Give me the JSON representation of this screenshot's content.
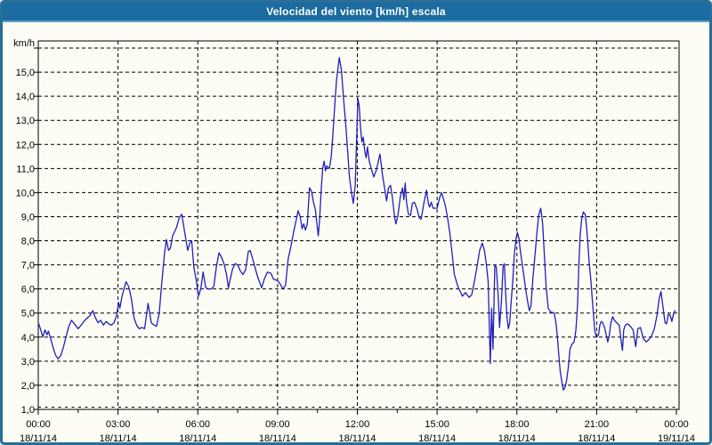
{
  "window": {
    "title": "Velocidad del viento [km/h] escala"
  },
  "colors": {
    "titlebar_bg": "#1b6ba0",
    "titlebar_edge": "#5d9fc4",
    "frame_border": "#2a6d97",
    "background": "#fdfdf5",
    "grid": "#000000",
    "text": "#000000",
    "line": "#1f1fbe"
  },
  "chart_data": {
    "type": "line",
    "title": "Velocidad del viento [km/h] escala",
    "y_unit_label": "km/h",
    "ylabel": "",
    "xlabel": "",
    "ylim": [
      1,
      16
    ],
    "y_tick_step": 1,
    "grid": "dashed",
    "legend_position": "none",
    "y_tick_labels": [
      "1,0",
      "2,0",
      "3,0",
      "4,0",
      "5,0",
      "6,0",
      "7,0",
      "8,0",
      "9,0",
      "10,0",
      "11,0",
      "12,0",
      "13,0",
      "14,0",
      "15,0"
    ],
    "x_range_hours": [
      0,
      24
    ],
    "x_ticks": [
      {
        "hour": 0,
        "time": "00:00",
        "date": "18/11/14"
      },
      {
        "hour": 3,
        "time": "03:00",
        "date": "18/11/14"
      },
      {
        "hour": 6,
        "time": "06:00",
        "date": "18/11/14"
      },
      {
        "hour": 9,
        "time": "09:00",
        "date": "18/11/14"
      },
      {
        "hour": 12,
        "time": "12:00",
        "date": "18/11/14"
      },
      {
        "hour": 15,
        "time": "15:00",
        "date": "18/11/14"
      },
      {
        "hour": 18,
        "time": "18:00",
        "date": "18/11/14"
      },
      {
        "hour": 21,
        "time": "21:00",
        "date": "18/11/14"
      },
      {
        "hour": 24,
        "time": "00:00",
        "date": "19/11/14"
      }
    ],
    "series": [
      {
        "name": "Velocidad del viento [km/h]",
        "color": "#1f1fbe",
        "points": [
          [
            0.0,
            4.6
          ],
          [
            0.08,
            4.35
          ],
          [
            0.17,
            4.0
          ],
          [
            0.25,
            4.3
          ],
          [
            0.33,
            4.1
          ],
          [
            0.38,
            4.25
          ],
          [
            0.45,
            4.0
          ],
          [
            0.55,
            3.6
          ],
          [
            0.65,
            3.25
          ],
          [
            0.75,
            3.1
          ],
          [
            0.85,
            3.25
          ],
          [
            0.95,
            3.6
          ],
          [
            1.05,
            4.05
          ],
          [
            1.15,
            4.45
          ],
          [
            1.25,
            4.7
          ],
          [
            1.4,
            4.5
          ],
          [
            1.5,
            4.35
          ],
          [
            1.65,
            4.55
          ],
          [
            1.75,
            4.7
          ],
          [
            1.85,
            4.8
          ],
          [
            1.95,
            4.9
          ],
          [
            2.05,
            5.1
          ],
          [
            2.15,
            4.8
          ],
          [
            2.25,
            4.6
          ],
          [
            2.35,
            4.7
          ],
          [
            2.45,
            4.5
          ],
          [
            2.55,
            4.65
          ],
          [
            2.65,
            4.55
          ],
          [
            2.75,
            4.5
          ],
          [
            2.85,
            4.6
          ],
          [
            2.95,
            4.9
          ],
          [
            3.02,
            5.45
          ],
          [
            3.07,
            5.2
          ],
          [
            3.15,
            5.7
          ],
          [
            3.3,
            6.3
          ],
          [
            3.4,
            6.1
          ],
          [
            3.5,
            5.6
          ],
          [
            3.6,
            4.8
          ],
          [
            3.7,
            4.5
          ],
          [
            3.8,
            4.35
          ],
          [
            3.9,
            4.4
          ],
          [
            4.0,
            4.35
          ],
          [
            4.13,
            5.4
          ],
          [
            4.25,
            4.6
          ],
          [
            4.35,
            4.5
          ],
          [
            4.45,
            4.45
          ],
          [
            4.55,
            5.0
          ],
          [
            4.65,
            6.3
          ],
          [
            4.75,
            7.5
          ],
          [
            4.82,
            8.05
          ],
          [
            4.9,
            7.6
          ],
          [
            4.97,
            7.7
          ],
          [
            5.05,
            8.2
          ],
          [
            5.2,
            8.55
          ],
          [
            5.3,
            8.95
          ],
          [
            5.4,
            9.1
          ],
          [
            5.5,
            8.4
          ],
          [
            5.62,
            7.6
          ],
          [
            5.7,
            7.9
          ],
          [
            5.77,
            8.0
          ],
          [
            5.85,
            6.9
          ],
          [
            5.95,
            6.3
          ],
          [
            6.03,
            5.7
          ],
          [
            6.12,
            6.05
          ],
          [
            6.2,
            6.7
          ],
          [
            6.3,
            6.05
          ],
          [
            6.4,
            6.0
          ],
          [
            6.5,
            6.0
          ],
          [
            6.6,
            6.1
          ],
          [
            6.7,
            6.95
          ],
          [
            6.8,
            7.5
          ],
          [
            6.9,
            7.3
          ],
          [
            7.0,
            7.0
          ],
          [
            7.08,
            6.6
          ],
          [
            7.15,
            6.05
          ],
          [
            7.22,
            6.4
          ],
          [
            7.3,
            6.8
          ],
          [
            7.4,
            7.05
          ],
          [
            7.5,
            7.0
          ],
          [
            7.6,
            6.75
          ],
          [
            7.7,
            6.6
          ],
          [
            7.8,
            6.8
          ],
          [
            7.9,
            7.55
          ],
          [
            7.97,
            7.6
          ],
          [
            8.05,
            7.3
          ],
          [
            8.15,
            6.9
          ],
          [
            8.25,
            6.5
          ],
          [
            8.4,
            6.05
          ],
          [
            8.5,
            6.4
          ],
          [
            8.62,
            6.7
          ],
          [
            8.75,
            6.65
          ],
          [
            8.85,
            6.4
          ],
          [
            9.0,
            6.35
          ],
          [
            9.1,
            6.2
          ],
          [
            9.2,
            6.0
          ],
          [
            9.3,
            6.15
          ],
          [
            9.4,
            7.25
          ],
          [
            9.5,
            7.75
          ],
          [
            9.6,
            8.35
          ],
          [
            9.7,
            8.85
          ],
          [
            9.77,
            9.25
          ],
          [
            9.85,
            9.0
          ],
          [
            9.92,
            8.5
          ],
          [
            9.98,
            8.7
          ],
          [
            10.05,
            8.45
          ],
          [
            10.12,
            8.7
          ],
          [
            10.2,
            10.2
          ],
          [
            10.28,
            10.05
          ],
          [
            10.35,
            9.6
          ],
          [
            10.42,
            9.3
          ],
          [
            10.48,
            8.7
          ],
          [
            10.53,
            8.2
          ],
          [
            10.58,
            8.85
          ],
          [
            10.65,
            10.3
          ],
          [
            10.7,
            11.05
          ],
          [
            10.75,
            11.3
          ],
          [
            10.8,
            10.9
          ],
          [
            10.85,
            11.1
          ],
          [
            10.95,
            11.0
          ],
          [
            11.02,
            11.5
          ],
          [
            11.08,
            12.4
          ],
          [
            11.15,
            13.6
          ],
          [
            11.22,
            14.7
          ],
          [
            11.32,
            15.6
          ],
          [
            11.4,
            15.1
          ],
          [
            11.48,
            13.9
          ],
          [
            11.55,
            13.0
          ],
          [
            11.62,
            12.0
          ],
          [
            11.7,
            10.7
          ],
          [
            11.78,
            10.0
          ],
          [
            11.85,
            9.55
          ],
          [
            11.92,
            10.3
          ],
          [
            11.97,
            12.1
          ],
          [
            12.02,
            13.9
          ],
          [
            12.07,
            13.6
          ],
          [
            12.12,
            12.7
          ],
          [
            12.17,
            12.1
          ],
          [
            12.22,
            12.3
          ],
          [
            12.28,
            11.7
          ],
          [
            12.33,
            11.45
          ],
          [
            12.38,
            11.9
          ],
          [
            12.45,
            11.3
          ],
          [
            12.55,
            10.9
          ],
          [
            12.62,
            10.65
          ],
          [
            12.72,
            10.95
          ],
          [
            12.85,
            11.6
          ],
          [
            12.95,
            10.7
          ],
          [
            13.05,
            10.0
          ],
          [
            13.1,
            9.65
          ],
          [
            13.17,
            10.2
          ],
          [
            13.25,
            10.3
          ],
          [
            13.32,
            9.8
          ],
          [
            13.4,
            9.0
          ],
          [
            13.45,
            8.7
          ],
          [
            13.52,
            9.0
          ],
          [
            13.62,
            9.85
          ],
          [
            13.7,
            10.2
          ],
          [
            13.75,
            9.7
          ],
          [
            13.8,
            10.4
          ],
          [
            13.85,
            9.6
          ],
          [
            13.92,
            9.1
          ],
          [
            14.0,
            9.05
          ],
          [
            14.07,
            9.55
          ],
          [
            14.15,
            9.6
          ],
          [
            14.25,
            9.3
          ],
          [
            14.33,
            8.95
          ],
          [
            14.4,
            8.9
          ],
          [
            14.5,
            9.55
          ],
          [
            14.6,
            10.1
          ],
          [
            14.67,
            9.55
          ],
          [
            14.72,
            9.4
          ],
          [
            14.78,
            9.6
          ],
          [
            14.85,
            9.35
          ],
          [
            15.0,
            9.35
          ],
          [
            15.1,
            9.8
          ],
          [
            15.17,
            10.0
          ],
          [
            15.25,
            9.7
          ],
          [
            15.32,
            9.4
          ],
          [
            15.4,
            8.9
          ],
          [
            15.48,
            8.3
          ],
          [
            15.57,
            7.4
          ],
          [
            15.65,
            6.6
          ],
          [
            15.73,
            6.3
          ],
          [
            15.8,
            6.05
          ],
          [
            15.87,
            5.9
          ],
          [
            15.95,
            5.7
          ],
          [
            16.07,
            5.85
          ],
          [
            16.2,
            5.65
          ],
          [
            16.3,
            5.75
          ],
          [
            16.4,
            6.3
          ],
          [
            16.5,
            6.9
          ],
          [
            16.6,
            7.6
          ],
          [
            16.7,
            7.9
          ],
          [
            16.78,
            7.6
          ],
          [
            16.85,
            7.05
          ],
          [
            16.92,
            6.3
          ],
          [
            17.0,
            2.9
          ],
          [
            17.05,
            5.2
          ],
          [
            17.1,
            3.5
          ],
          [
            17.17,
            7.0
          ],
          [
            17.23,
            6.9
          ],
          [
            17.3,
            5.7
          ],
          [
            17.35,
            4.4
          ],
          [
            17.42,
            5.5
          ],
          [
            17.48,
            6.9
          ],
          [
            17.53,
            7.05
          ],
          [
            17.58,
            5.8
          ],
          [
            17.63,
            4.8
          ],
          [
            17.68,
            4.35
          ],
          [
            17.73,
            4.6
          ],
          [
            17.78,
            5.4
          ],
          [
            17.85,
            6.4
          ],
          [
            17.9,
            7.4
          ],
          [
            17.97,
            8.1
          ],
          [
            18.02,
            8.35
          ],
          [
            18.08,
            8.1
          ],
          [
            18.13,
            7.6
          ],
          [
            18.2,
            7.05
          ],
          [
            18.27,
            6.5
          ],
          [
            18.33,
            6.0
          ],
          [
            18.4,
            5.5
          ],
          [
            18.47,
            5.1
          ],
          [
            18.53,
            5.3
          ],
          [
            18.6,
            6.4
          ],
          [
            18.68,
            7.4
          ],
          [
            18.75,
            8.3
          ],
          [
            18.82,
            9.05
          ],
          [
            18.9,
            9.35
          ],
          [
            18.97,
            8.7
          ],
          [
            19.03,
            7.5
          ],
          [
            19.1,
            6.1
          ],
          [
            19.18,
            5.2
          ],
          [
            19.27,
            5.05
          ],
          [
            19.4,
            5.0
          ],
          [
            19.47,
            4.6
          ],
          [
            19.53,
            3.9
          ],
          [
            19.58,
            3.2
          ],
          [
            19.63,
            2.6
          ],
          [
            19.7,
            2.1
          ],
          [
            19.75,
            1.8
          ],
          [
            19.82,
            1.95
          ],
          [
            19.87,
            2.2
          ],
          [
            19.93,
            2.7
          ],
          [
            20.0,
            3.5
          ],
          [
            20.07,
            3.7
          ],
          [
            20.15,
            3.8
          ],
          [
            20.22,
            4.3
          ],
          [
            20.28,
            5.3
          ],
          [
            20.33,
            7.0
          ],
          [
            20.38,
            8.25
          ],
          [
            20.44,
            8.9
          ],
          [
            20.5,
            9.2
          ],
          [
            20.57,
            9.1
          ],
          [
            20.62,
            8.6
          ],
          [
            20.67,
            7.9
          ],
          [
            20.72,
            7.1
          ],
          [
            20.78,
            6.4
          ],
          [
            20.83,
            5.65
          ],
          [
            20.88,
            4.95
          ],
          [
            20.93,
            4.25
          ],
          [
            21.0,
            4.0
          ],
          [
            21.07,
            4.1
          ],
          [
            21.12,
            4.5
          ],
          [
            21.17,
            4.65
          ],
          [
            21.23,
            4.6
          ],
          [
            21.3,
            4.4
          ],
          [
            21.37,
            4.05
          ],
          [
            21.42,
            3.8
          ],
          [
            21.48,
            4.1
          ],
          [
            21.53,
            4.55
          ],
          [
            21.6,
            4.85
          ],
          [
            21.67,
            4.7
          ],
          [
            21.75,
            4.6
          ],
          [
            21.85,
            4.5
          ],
          [
            21.92,
            3.85
          ],
          [
            21.97,
            3.45
          ],
          [
            22.02,
            4.3
          ],
          [
            22.08,
            4.5
          ],
          [
            22.17,
            4.55
          ],
          [
            22.27,
            4.45
          ],
          [
            22.37,
            4.3
          ],
          [
            22.47,
            3.6
          ],
          [
            22.55,
            4.35
          ],
          [
            22.65,
            4.4
          ],
          [
            22.75,
            3.95
          ],
          [
            22.87,
            3.8
          ],
          [
            22.97,
            3.9
          ],
          [
            23.07,
            4.05
          ],
          [
            23.17,
            4.35
          ],
          [
            23.27,
            4.9
          ],
          [
            23.35,
            5.6
          ],
          [
            23.42,
            5.9
          ],
          [
            23.5,
            5.2
          ],
          [
            23.57,
            4.6
          ],
          [
            23.63,
            4.55
          ],
          [
            23.7,
            4.95
          ],
          [
            23.77,
            4.9
          ],
          [
            23.83,
            4.65
          ],
          [
            23.9,
            5.0
          ],
          [
            23.95,
            5.1
          ]
        ]
      }
    ]
  }
}
